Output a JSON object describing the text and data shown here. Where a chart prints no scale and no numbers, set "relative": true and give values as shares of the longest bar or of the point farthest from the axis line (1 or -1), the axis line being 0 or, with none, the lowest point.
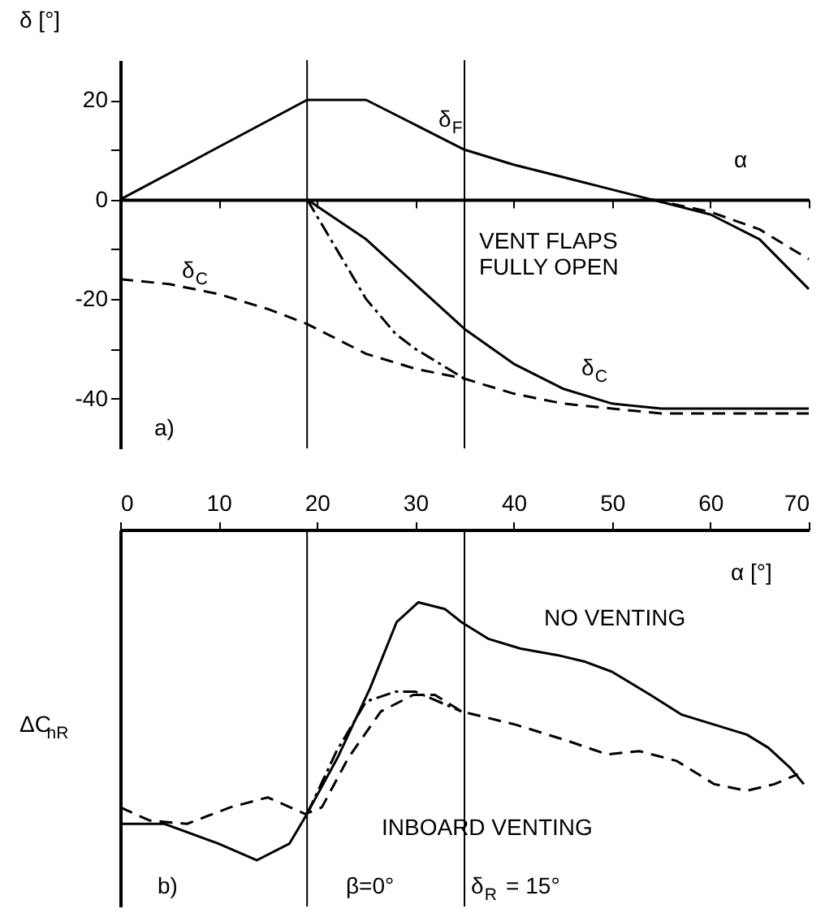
{
  "chart_data": [
    {
      "type": "line",
      "ylabel": "δ [°]",
      "xlim": [
        0,
        70
      ],
      "xticks": [
        10,
        20,
        30,
        40,
        50,
        60,
        70
      ],
      "ylim": [
        -50,
        28
      ],
      "yticks": [
        20,
        {
          "value": 10,
          "label": null
        },
        0,
        {
          "value": -10,
          "label": null
        },
        -20,
        {
          "value": -30,
          "label": null
        },
        -40
      ],
      "tick_labels": "y",
      "series": [
        {
          "color": "#000000",
          "line_style": "solid",
          "x": [
            0,
            19,
            25,
            30,
            35,
            40,
            45,
            50,
            54,
            60,
            65,
            70
          ],
          "values": [
            0,
            20,
            20,
            15,
            10,
            7,
            4.5,
            2,
            0,
            -3,
            -8,
            -18
          ]
        },
        {
          "color": "#000000",
          "line_style": "dashed",
          "x": [
            54,
            60,
            65,
            70
          ],
          "values": [
            0,
            -2.5,
            -6,
            -12
          ]
        },
        {
          "color": "#000000",
          "line_style": "solid",
          "x": [
            19,
            25,
            30,
            35,
            40,
            45,
            50,
            55,
            70
          ],
          "values": [
            0,
            -8,
            -17,
            -26,
            -33,
            -38,
            -41,
            -42,
            -42
          ]
        },
        {
          "color": "#000000",
          "line_style": "dashed",
          "x": [
            0,
            5,
            10,
            15,
            19,
            25,
            30,
            35,
            40,
            45,
            50,
            55,
            70
          ],
          "values": [
            -16,
            -17,
            -19,
            -22,
            -25,
            -31,
            -34,
            -36,
            -39,
            -41,
            -42,
            -43,
            -43
          ]
        },
        {
          "color": "#000000",
          "line_style": "dashdot",
          "x": [
            19,
            22,
            25,
            28,
            30,
            35
          ],
          "values": [
            0,
            -10,
            -20,
            -27,
            -30,
            -36
          ]
        }
      ],
      "ref_lines": [
        {
          "axis": "x",
          "value": 19
        },
        {
          "axis": "x",
          "value": 35
        }
      ],
      "annotations": [
        "δ$_{F}$",
        "α",
        "δ$_{C}$",
        "δ$_{C}$",
        "VENT FLAPS\nFULLY OPEN",
        "a)"
      ]
    },
    {
      "type": "line",
      "ylabel": "ΔC$_{nR}$",
      "relative": true,
      "xlim": [
        0,
        70
      ],
      "xticks": [
        0,
        10,
        20,
        30,
        40,
        50,
        60,
        70
      ],
      "tick_labels": "x",
      "series": [
        {
          "color": "#000000",
          "line_style": "solid",
          "x": [
            0,
            4.5,
            10,
            13.9,
            17.2,
            18.8,
            22.1,
            25.4,
            28.1,
            30.3,
            33,
            34.7,
            37.4,
            40.7,
            44.5,
            47.3,
            50,
            53.9,
            57.1,
            60.4,
            63.7,
            65.9,
            68.1,
            69.5
          ],
          "values": [
            -0.89,
            -0.89,
            -0.95,
            -1,
            -0.95,
            -0.87,
            -0.69,
            -0.48,
            -0.28,
            -0.22,
            -0.24,
            -0.28,
            -0.33,
            -0.36,
            -0.38,
            -0.4,
            -0.43,
            -0.5,
            -0.56,
            -0.59,
            -0.62,
            -0.66,
            -0.72,
            -0.77
          ]
        },
        {
          "color": "#000000",
          "line_style": "dashed",
          "x": [
            0,
            3,
            6.8,
            11.2,
            15,
            18.8,
            20.5,
            23.2,
            26.5,
            29.8,
            32,
            34.7,
            40.2,
            45.6,
            49.5,
            52.8,
            56.6,
            60.4,
            63.7,
            66.5,
            68.9
          ],
          "values": [
            -0.84,
            -0.88,
            -0.89,
            -0.84,
            -0.81,
            -0.86,
            -0.84,
            -0.69,
            -0.55,
            -0.5,
            -0.5,
            -0.55,
            -0.59,
            -0.64,
            -0.68,
            -0.67,
            -0.7,
            -0.77,
            -0.79,
            -0.77,
            -0.74
          ]
        },
        {
          "color": "#000000",
          "line_style": "dashdot",
          "x": [
            19,
            22,
            25,
            28,
            30,
            34.7
          ],
          "values": [
            -0.86,
            -0.67,
            -0.52,
            -0.49,
            -0.49,
            -0.55
          ]
        }
      ],
      "ref_lines": [
        {
          "axis": "x",
          "value": 19
        },
        {
          "axis": "x",
          "value": 35
        }
      ],
      "annotations": [
        "α [°]",
        "NO VENTING",
        "INBOARD VENTING",
        "b)",
        "β=0°",
        "δ$_{R}$ = 15°"
      ]
    }
  ]
}
